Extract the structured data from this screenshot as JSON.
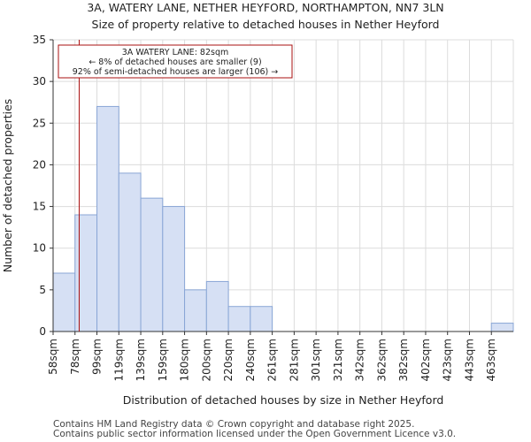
{
  "chart_data": {
    "type": "bar",
    "title": "3A, WATERY LANE, NETHER HEYFORD, NORTHAMPTON, NN7 3LN",
    "subtitle": "Size of property relative to detached houses in Nether Heyford",
    "xlabel": "Distribution of detached houses by size in Nether Heyford",
    "ylabel": "Number of detached properties",
    "categories": [
      "58sqm",
      "78sqm",
      "99sqm",
      "119sqm",
      "139sqm",
      "159sqm",
      "180sqm",
      "200sqm",
      "220sqm",
      "240sqm",
      "261sqm",
      "281sqm",
      "301sqm",
      "321sqm",
      "342sqm",
      "362sqm",
      "382sqm",
      "402sqm",
      "423sqm",
      "443sqm",
      "463sqm"
    ],
    "values": [
      7,
      14,
      27,
      19,
      16,
      15,
      5,
      6,
      3,
      3,
      0,
      0,
      0,
      0,
      0,
      0,
      0,
      0,
      0,
      0,
      1
    ],
    "ylim": [
      0,
      35
    ],
    "yticks": [
      0,
      5,
      10,
      15,
      20,
      25,
      30,
      35
    ],
    "grid": true,
    "marker": {
      "value_sqm": 82,
      "color": "#aa1111",
      "lines": [
        "3A WATERY LANE: 82sqm",
        "← 8% of detached houses are smaller (9)",
        "92% of semi-detached houses are larger (106) →"
      ]
    }
  },
  "footer": {
    "line1": "Contains HM Land Registry data © Crown copyright and database right 2025.",
    "line2": "Contains public sector information licensed under the Open Government Licence v3.0."
  }
}
